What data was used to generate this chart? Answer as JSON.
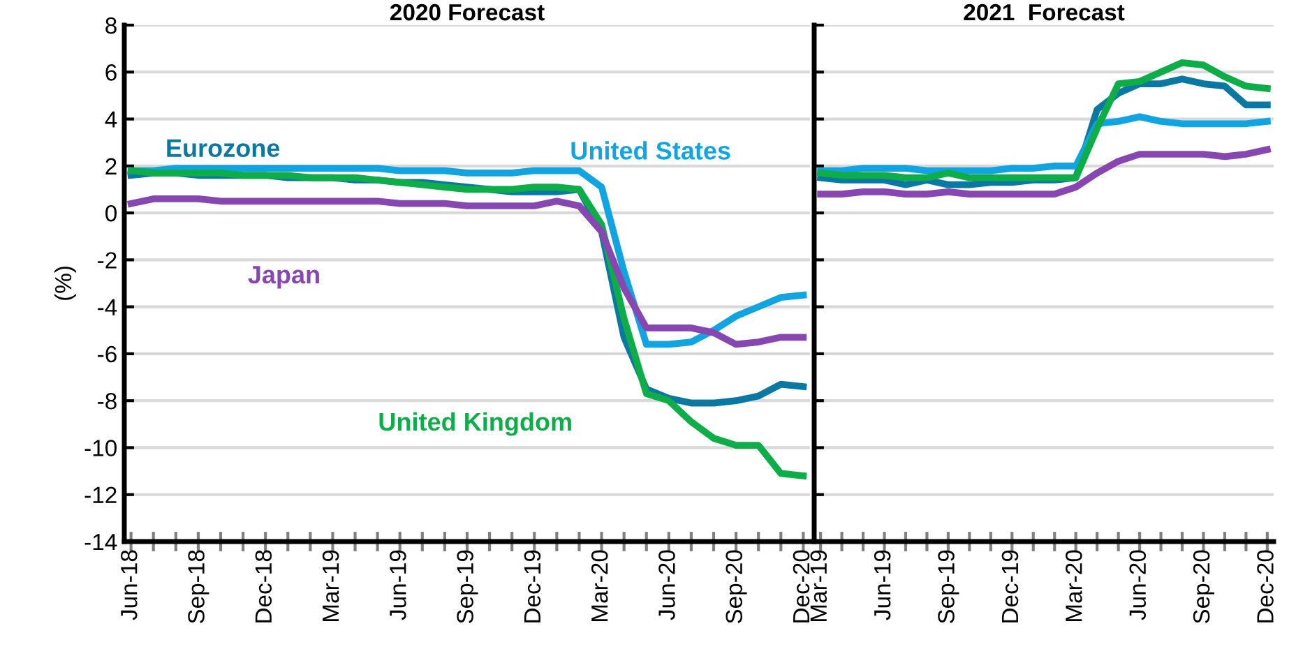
{
  "chart_data": [
    {
      "type": "line",
      "title": "2020 Forecast",
      "ylabel": "(%)",
      "categories": [
        "Jun-18",
        null,
        null,
        "Sep-18",
        null,
        null,
        "Dec-18",
        null,
        null,
        "Mar-19",
        null,
        null,
        "Jun-19",
        null,
        null,
        "Sep-19",
        null,
        null,
        "Dec-19",
        null,
        null,
        "Mar-20",
        null,
        null,
        "Jun-20",
        null,
        null,
        "Sep-20",
        null,
        null,
        "Dec-20"
      ],
      "series": [
        {
          "name": "Eurozone",
          "color": "#0a78a0",
          "values": [
            1.6,
            1.7,
            1.7,
            1.6,
            1.6,
            1.6,
            1.6,
            1.5,
            1.5,
            1.5,
            1.4,
            1.4,
            1.3,
            1.3,
            1.2,
            1.1,
            1.0,
            0.9,
            0.9,
            0.9,
            1.0,
            -0.8,
            -5.3,
            -7.5,
            -7.9,
            -8.1,
            -8.1,
            -8.0,
            -7.8,
            -7.3,
            -7.4
          ]
        },
        {
          "name": "United States",
          "color": "#12a4e0",
          "values": [
            1.8,
            1.8,
            1.9,
            1.9,
            1.9,
            1.9,
            1.9,
            1.9,
            1.9,
            1.9,
            1.9,
            1.9,
            1.8,
            1.8,
            1.8,
            1.7,
            1.7,
            1.7,
            1.8,
            1.8,
            1.8,
            1.1,
            -2.5,
            -5.6,
            -5.6,
            -5.5,
            -5.0,
            -4.4,
            -4.0,
            -3.6,
            -3.5
          ]
        },
        {
          "name": "United Kingdom",
          "color": "#0fad4a",
          "values": [
            1.8,
            1.7,
            1.7,
            1.7,
            1.7,
            1.6,
            1.6,
            1.6,
            1.5,
            1.5,
            1.5,
            1.4,
            1.3,
            1.2,
            1.1,
            1.0,
            1.0,
            1.0,
            1.1,
            1.1,
            1.0,
            -0.5,
            -4.5,
            -7.7,
            -8.0,
            -8.9,
            -9.6,
            -9.9,
            -9.9,
            -11.1,
            -11.2
          ]
        },
        {
          "name": "Japan",
          "color": "#8648b0",
          "values": [
            0.4,
            0.6,
            0.6,
            0.6,
            0.5,
            0.5,
            0.5,
            0.5,
            0.5,
            0.5,
            0.5,
            0.5,
            0.4,
            0.4,
            0.4,
            0.3,
            0.3,
            0.3,
            0.3,
            0.5,
            0.3,
            -0.8,
            -3.2,
            -4.9,
            -4.9,
            -4.9,
            -5.1,
            -5.6,
            -5.5,
            -5.3,
            -5.3
          ]
        }
      ],
      "ylim": [
        -14,
        8
      ],
      "yticks": [
        -14,
        -12,
        -10,
        -8,
        -6,
        -4,
        -2,
        0,
        2,
        4,
        6,
        8
      ],
      "grid": "y",
      "legend": false
    },
    {
      "type": "line",
      "title": "2021  Forecast",
      "categories": [
        "Mar-19",
        null,
        null,
        "Jun-19",
        null,
        null,
        "Sep-19",
        null,
        null,
        "Dec-19",
        null,
        null,
        "Mar-20",
        null,
        null,
        "Jun-20",
        null,
        null,
        "Sep-20",
        null,
        null,
        "Dec-20"
      ],
      "series": [
        {
          "color": "#0a78a0",
          "values": [
            1.5,
            1.4,
            1.4,
            1.4,
            1.2,
            1.4,
            1.2,
            1.2,
            1.3,
            1.3,
            1.4,
            1.4,
            1.5,
            4.4,
            5.1,
            5.5,
            5.5,
            5.7,
            5.5,
            5.4,
            4.6,
            4.6
          ]
        },
        {
          "color": "#12a4e0",
          "values": [
            1.8,
            1.8,
            1.9,
            1.9,
            1.9,
            1.8,
            1.8,
            1.8,
            1.8,
            1.9,
            1.9,
            2.0,
            2.0,
            3.8,
            3.9,
            4.1,
            3.9,
            3.8,
            3.8,
            3.8,
            3.8,
            3.9
          ]
        },
        {
          "color": "#0fad4a",
          "values": [
            1.7,
            1.6,
            1.6,
            1.6,
            1.5,
            1.5,
            1.7,
            1.5,
            1.5,
            1.5,
            1.5,
            1.5,
            1.5,
            3.6,
            5.5,
            5.6,
            6.0,
            6.4,
            6.3,
            5.8,
            5.4,
            5.3
          ]
        },
        {
          "color": "#8648b0",
          "values": [
            0.8,
            0.8,
            0.9,
            0.9,
            0.8,
            0.8,
            0.9,
            0.8,
            0.8,
            0.8,
            0.8,
            0.8,
            1.1,
            1.7,
            2.2,
            2.5,
            2.5,
            2.5,
            2.5,
            2.4,
            2.5,
            2.7
          ]
        }
      ],
      "ylim": [
        -14,
        8
      ],
      "yticks": [
        -14,
        -12,
        -10,
        -8,
        -6,
        -4,
        -2,
        0,
        2,
        4,
        6,
        8
      ],
      "grid": "y",
      "legend": false,
      "tick_labels": "x"
    }
  ]
}
